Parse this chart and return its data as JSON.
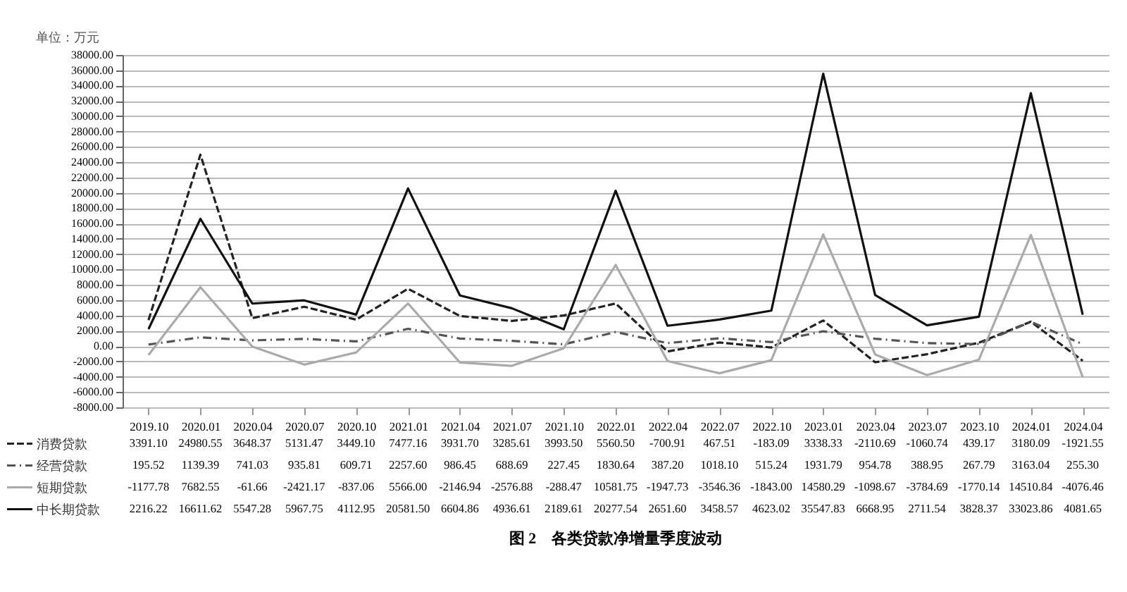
{
  "chart_data": {
    "type": "line",
    "title": "图 2　各类贷款净增量季度波动",
    "ylabel": "单位：万元",
    "categories": [
      "2019.10",
      "2020.01",
      "2020.04",
      "2020.07",
      "2020.10",
      "2021.01",
      "2021.04",
      "2021.07",
      "2021.10",
      "2022.01",
      "2022.04",
      "2022.07",
      "2022.10",
      "2023.01",
      "2023.04",
      "2023.07",
      "2023.10",
      "2024.01",
      "2024.04"
    ],
    "series": [
      {
        "name": "消费贷款",
        "color": "#222222",
        "line_style": "dashed",
        "values": [
          3391.1,
          24980.55,
          3648.37,
          5131.47,
          3449.1,
          7477.16,
          3931.7,
          3285.61,
          3993.5,
          5560.5,
          -700.91,
          467.51,
          -183.09,
          3338.33,
          -2110.69,
          -1060.74,
          439.17,
          3180.09,
          -1921.55
        ],
        "value_labels": [
          "3391.10",
          "24980.55",
          "3648.37",
          "5131.47",
          "3449.10",
          "7477.16",
          "3931.70",
          "3285.61",
          "3993.50",
          "5560.50",
          "-700.91",
          "467.51",
          "-183.09",
          "3338.33",
          "-2110.69",
          "-1060.74",
          "439.17",
          "3180.09",
          "-1921.55"
        ]
      },
      {
        "name": "经营贷款",
        "color": "#555555",
        "line_style": "dashdot",
        "values": [
          195.52,
          1139.39,
          741.03,
          935.81,
          609.71,
          2257.6,
          986.45,
          688.69,
          227.45,
          1830.64,
          387.2,
          1018.1,
          515.24,
          1931.79,
          954.78,
          388.95,
          267.79,
          3163.04,
          255.3
        ],
        "value_labels": [
          "195.52",
          "1139.39",
          "741.03",
          "935.81",
          "609.71",
          "2257.60",
          "986.45",
          "688.69",
          "227.45",
          "1830.64",
          "387.20",
          "1018.10",
          "515.24",
          "1931.79",
          "954.78",
          "388.95",
          "267.79",
          "3163.04",
          "255.30"
        ]
      },
      {
        "name": "短期贷款",
        "color": "#aaaaaa",
        "line_style": "solid",
        "values": [
          -1177.78,
          7682.55,
          -61.66,
          -2421.17,
          -837.06,
          5566.0,
          -2146.94,
          -2576.88,
          -288.47,
          10581.75,
          -1947.73,
          -3546.36,
          -1843.0,
          14580.29,
          -1098.67,
          -3784.69,
          -1770.14,
          14510.84,
          -4076.46
        ],
        "value_labels": [
          "-1177.78",
          "7682.55",
          "-61.66",
          "-2421.17",
          "-837.06",
          "5566.00",
          "-2146.94",
          "-2576.88",
          "-288.47",
          "10581.75",
          "-1947.73",
          "-3546.36",
          "-1843.00",
          "14580.29",
          "-1098.67",
          "-3784.69",
          "-1770.14",
          "14510.84",
          "-4076.46"
        ]
      },
      {
        "name": "中长期贷款",
        "color": "#111111",
        "line_style": "solid",
        "values": [
          2216.22,
          16611.62,
          5547.28,
          5967.75,
          4112.95,
          20581.5,
          6604.86,
          4936.61,
          2189.61,
          20277.54,
          2651.6,
          3458.57,
          4623.02,
          35547.83,
          6668.95,
          2711.54,
          3828.37,
          33023.86,
          4081.65
        ],
        "value_labels": [
          "2216.22",
          "16611.62",
          "5547.28",
          "5967.75",
          "4112.95",
          "20581.50",
          "6604.86",
          "4936.61",
          "2189.61",
          "20277.54",
          "2651.60",
          "3458.57",
          "4623.02",
          "35547.83",
          "6668.95",
          "2711.54",
          "3828.37",
          "33023.86",
          "4081.65"
        ]
      }
    ],
    "ylim": [
      -8000,
      38000
    ],
    "yticks": [
      {
        "value": -8000,
        "label": "-8000.00"
      },
      {
        "value": -6000,
        "label": "-6000.00"
      },
      {
        "value": -4000,
        "label": "-4000.00"
      },
      {
        "value": -2000,
        "label": "-2000.00"
      },
      {
        "value": 0,
        "label": "0.00"
      },
      {
        "value": 2000,
        "label": "2000.00"
      },
      {
        "value": 4000,
        "label": "4000.00"
      },
      {
        "value": 6000,
        "label": "6000.00"
      },
      {
        "value": 8000,
        "label": "8000.00"
      },
      {
        "value": 10000,
        "label": "10000.00"
      },
      {
        "value": 12000,
        "label": "12000.00"
      },
      {
        "value": 14000,
        "label": "14000.00"
      },
      {
        "value": 16000,
        "label": "16000.00"
      },
      {
        "value": 18000,
        "label": "18000.00"
      },
      {
        "value": 20000,
        "label": "20000.00"
      },
      {
        "value": 22000,
        "label": "22000.00"
      },
      {
        "value": 24000,
        "label": "24000.00"
      },
      {
        "value": 26000,
        "label": "26000.00"
      },
      {
        "value": 28000,
        "label": "28000.00"
      },
      {
        "value": 30000,
        "label": "30000.00"
      },
      {
        "value": 32000,
        "label": "32000.00"
      },
      {
        "value": 34000,
        "label": "34000.00"
      },
      {
        "value": 36000,
        "label": "36000.00"
      },
      {
        "value": 38000,
        "label": "38000.00"
      }
    ],
    "grid": "y",
    "legend": "bottom",
    "marker": "none"
  }
}
